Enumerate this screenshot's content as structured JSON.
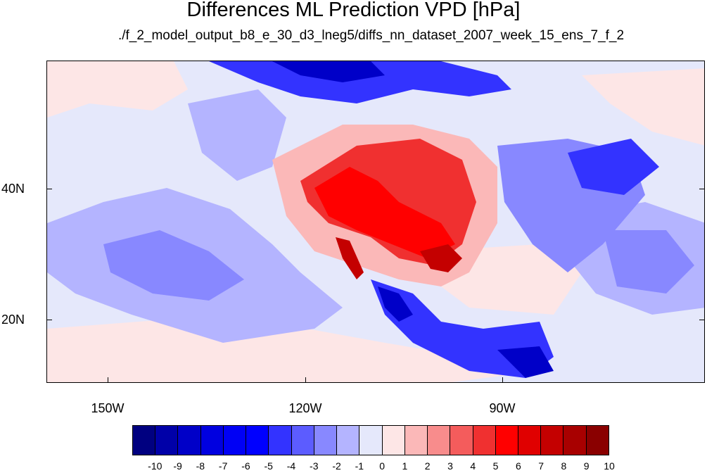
{
  "title": "Differences ML Prediction VPD [hPa]",
  "subtitle": "./f_2_model_output_b8_e_30_d3_lneg5/diffs_nn_dataset_2007_week_15_ens_7_f_2",
  "latitude_labels": [
    "40N",
    "20N"
  ],
  "longitude_labels": [
    "150W",
    "120W",
    "90W"
  ],
  "colorbar": {
    "labels": [
      "-10",
      "-9",
      "-8",
      "-7",
      "-6",
      "-5",
      "-4",
      "-3",
      "-2",
      "-1",
      "0",
      "1",
      "2",
      "3",
      "4",
      "5",
      "6",
      "7",
      "8",
      "9",
      "10"
    ],
    "colors": [
      "#000080",
      "#0000a8",
      "#0000c8",
      "#0000e0",
      "#0000f5",
      "#0000ff",
      "#3333ff",
      "#5c5cff",
      "#8888ff",
      "#b4b4ff",
      "#e5e8fb",
      "#fde6e6",
      "#fbb8b8",
      "#f88c8c",
      "#f45c5c",
      "#f03030",
      "#ff0000",
      "#e00000",
      "#c40000",
      "#a80000",
      "#8a0000"
    ]
  },
  "map_colors": {
    "background": "#e5e8fb",
    "light_blue": "#b4b4ff",
    "mid_blue": "#8888ff",
    "blue": "#3333ff",
    "dark_blue": "#0000c8",
    "light_red": "#fde6e6",
    "pink": "#fbb8b8",
    "red": "#f03030",
    "bright_red": "#ff0000",
    "dark_red": "#c40000"
  }
}
